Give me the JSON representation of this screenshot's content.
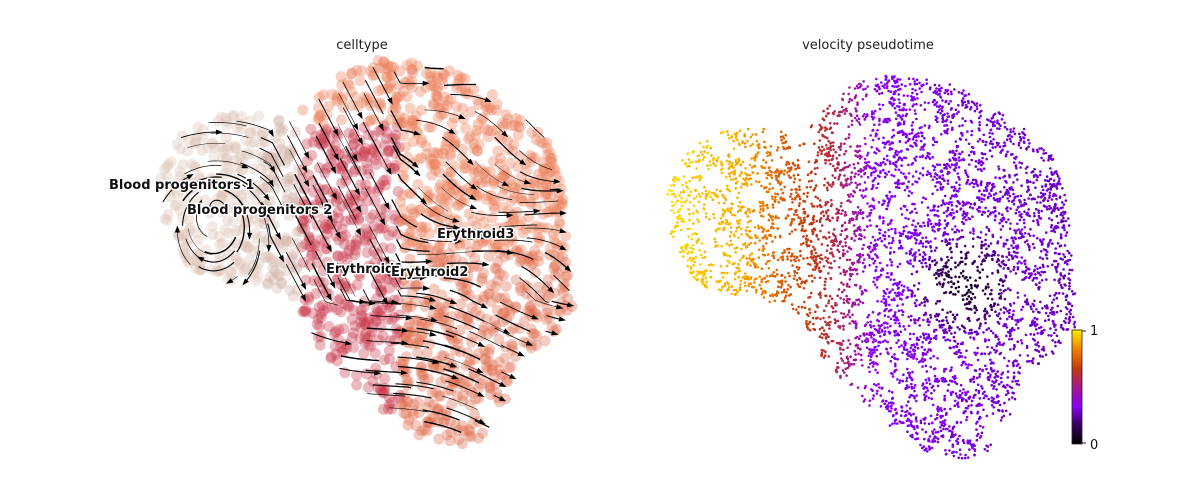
{
  "figure": {
    "panels": [
      {
        "title": "celltype"
      },
      {
        "title": "velocity pseudotime"
      }
    ]
  },
  "chart_data": [
    {
      "type": "scatter",
      "title": "celltype",
      "overlay": "velocity streamlines with arrowheads",
      "axes_visible": false,
      "grid": false,
      "clusters": [
        {
          "name": "Blood progenitors 1",
          "color": "#dcc4b4"
        },
        {
          "name": "Blood progenitors 2",
          "color": "#d2b2a6"
        },
        {
          "name": "Erythroid1",
          "color": "#c8374a"
        },
        {
          "name": "Erythroid2",
          "color": "#e06a4a"
        },
        {
          "name": "Erythroid3",
          "color": "#eb7c55"
        }
      ]
    },
    {
      "type": "scatter",
      "title": "velocity pseudotime",
      "axes_visible": false,
      "grid": false,
      "colormap": "gnuplot",
      "colorbar": {
        "min": 0,
        "max": 1,
        "ticks": [
          "0",
          "1"
        ],
        "position": "bottom-right"
      },
      "colors": {
        "low": "#000000",
        "mid": "#8a00ff",
        "high": "#ffec00"
      }
    }
  ]
}
